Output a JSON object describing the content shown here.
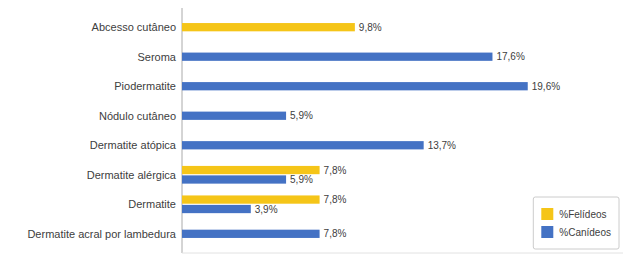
{
  "chart_data": {
    "type": "bar",
    "orientation": "horizontal",
    "categories": [
      "Abcesso cutâneo",
      "Seroma",
      "Piodermatite",
      "Nódulo cutâneo",
      "Dermatite atópica",
      "Dermatite alérgica",
      "Dermatite",
      "Dermatite acral por lambedura"
    ],
    "series": [
      {
        "name": "%Felídeos",
        "color": "#F5C518",
        "values": [
          9.8,
          0.0,
          0.0,
          0.0,
          0.0,
          7.8,
          7.8,
          0.0
        ],
        "value_labels": [
          "9,8%",
          null,
          null,
          null,
          null,
          "7,8%",
          "7,8%",
          null
        ]
      },
      {
        "name": "%Canídeos",
        "color": "#4472C4",
        "values": [
          0.0,
          17.6,
          19.6,
          5.9,
          13.7,
          5.9,
          3.9,
          7.8
        ],
        "value_labels": [
          null,
          "17,6%",
          "19,6%",
          "5,9%",
          "13,7%",
          "5,9%",
          "3,9%",
          "7,8%"
        ]
      }
    ],
    "xlim": [
      0,
      25
    ],
    "xticks": [],
    "grid": false,
    "legend": "lower right",
    "data_labels": true,
    "tick_labels": "y"
  }
}
